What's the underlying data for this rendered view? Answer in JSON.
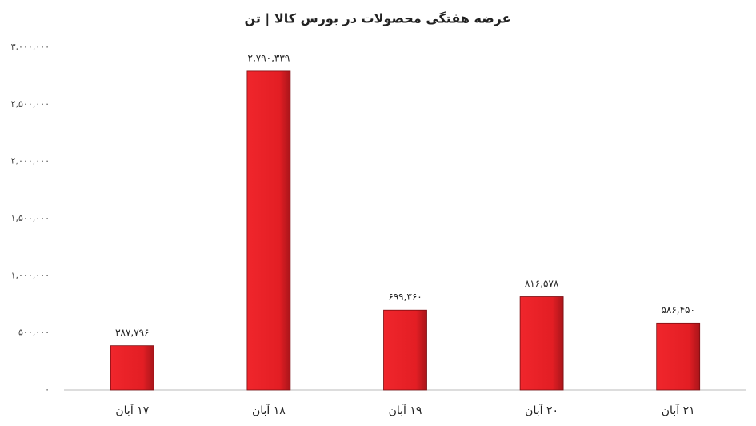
{
  "chart_data": {
    "type": "bar",
    "title": "عرضه هفتگی محصولات در بورس کالا | تن",
    "categories": [
      "۱۷ آبان",
      "۱۸ آبان",
      "۱۹ آبان",
      "۲۰ آبان",
      "۲۱ آبان"
    ],
    "values": [
      387796,
      2790339,
      699360,
      816578,
      586450
    ],
    "value_labels": [
      "۳۸۷,۷۹۶",
      "۲,۷۹۰,۳۳۹",
      "۶۹۹,۳۶۰",
      "۸۱۶,۵۷۸",
      "۵۸۶,۴۵۰"
    ],
    "color": "#e31e24",
    "ylim": [
      0,
      3000000
    ],
    "yticks": [
      {
        "value": 0,
        "label": "۰"
      },
      {
        "value": 500000,
        "label": "۵۰۰,۰۰۰"
      },
      {
        "value": 1000000,
        "label": "۱,۰۰۰,۰۰۰"
      },
      {
        "value": 1500000,
        "label": "۱,۵۰۰,۰۰۰"
      },
      {
        "value": 2000000,
        "label": "۲,۰۰۰,۰۰۰"
      },
      {
        "value": 2500000,
        "label": "۲,۵۰۰,۰۰۰"
      },
      {
        "value": 3000000,
        "label": "۳,۰۰۰,۰۰۰"
      }
    ],
    "grid": false
  }
}
